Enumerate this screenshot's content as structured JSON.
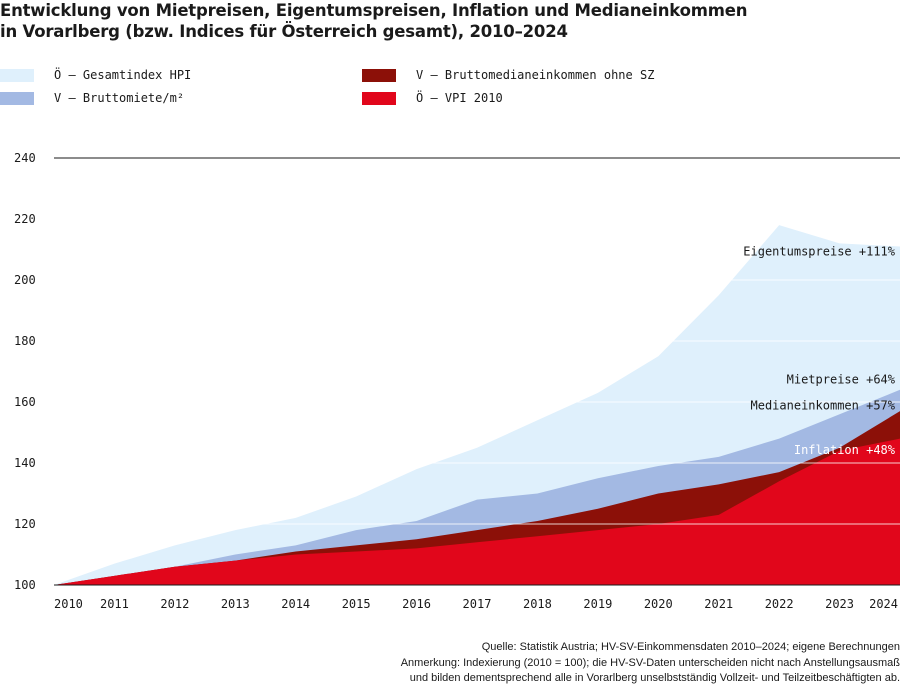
{
  "title": {
    "line1": "Entwicklung von Mietpreisen, Eigentumspreisen, Inflation und Medianeinkommen",
    "line2": "in Vorarlberg (bzw. Indices für Österreich gesamt), 2010–2024"
  },
  "legend": [
    {
      "label": "Ö – Gesamtindex HPI",
      "color": "#dff0fc"
    },
    {
      "label": "V – Bruttomiete/m²",
      "color": "#a3b9e3"
    },
    {
      "label": "V – Bruttomedianeinkommen ohne SZ",
      "color": "#8c1008"
    },
    {
      "label": "Ö – VPI 2010",
      "color": "#e1061b"
    }
  ],
  "chart_data": {
    "type": "area",
    "x": [
      2010,
      2011,
      2012,
      2013,
      2014,
      2015,
      2016,
      2017,
      2018,
      2019,
      2020,
      2021,
      2022,
      2023,
      2024
    ],
    "ylim": [
      100,
      240
    ],
    "yticks": [
      100,
      120,
      140,
      160,
      180,
      200,
      220,
      240
    ],
    "xticks": [
      "2010",
      "2011",
      "2012",
      "2013",
      "2014",
      "2015",
      "2016",
      "2017",
      "2018",
      "2019",
      "2020",
      "2021",
      "2022",
      "2023",
      "2024"
    ],
    "series": [
      {
        "name": "Ö – Gesamtindex HPI",
        "color": "#dff0fc",
        "values": [
          100,
          107,
          113,
          118,
          122,
          129,
          138,
          145,
          154,
          163,
          175,
          195,
          218,
          212,
          211
        ]
      },
      {
        "name": "V – Bruttomiete/m²",
        "color": "#a3b9e3",
        "values": [
          100,
          103,
          106,
          110,
          113,
          118,
          121,
          128,
          130,
          135,
          139,
          142,
          148,
          156,
          164
        ]
      },
      {
        "name": "V – Bruttomedianeinkommen ohne SZ",
        "color": "#8c1008",
        "values": [
          100,
          103,
          106,
          108,
          111,
          113,
          115,
          118,
          121,
          125,
          130,
          133,
          137,
          145,
          157
        ]
      },
      {
        "name": "Ö – VPI 2010",
        "color": "#e1061b",
        "values": [
          100,
          103,
          106,
          108,
          110,
          111,
          112,
          114,
          116,
          118,
          120,
          123,
          134,
          144,
          148
        ]
      }
    ],
    "annotations": [
      {
        "text": "Eigentumspreise +111%",
        "y": 208,
        "color": "#1a1a1a"
      },
      {
        "text": "Mietpreise +64%",
        "y": 166,
        "color": "#1a1a1a"
      },
      {
        "text": "Medianeinkommen +57%",
        "y": 157.5,
        "color": "#1a1a1a"
      },
      {
        "text": "Inflation +48%",
        "y": 143,
        "color": "#ffffff"
      }
    ]
  },
  "source": {
    "line1": "Quelle: Statistik Austria; HV-SV-Einkommensdaten 2010–2024; eigene Berechnungen",
    "line2": "Anmerkung: Indexierung (2010 = 100); die HV-SV-Daten unterscheiden nicht nach Anstellungsausmaß",
    "line3": "und bilden dementsprechend alle in Vorarlberg unselbstständig Vollzeit- und Teilzeitbeschäftigten ab."
  }
}
